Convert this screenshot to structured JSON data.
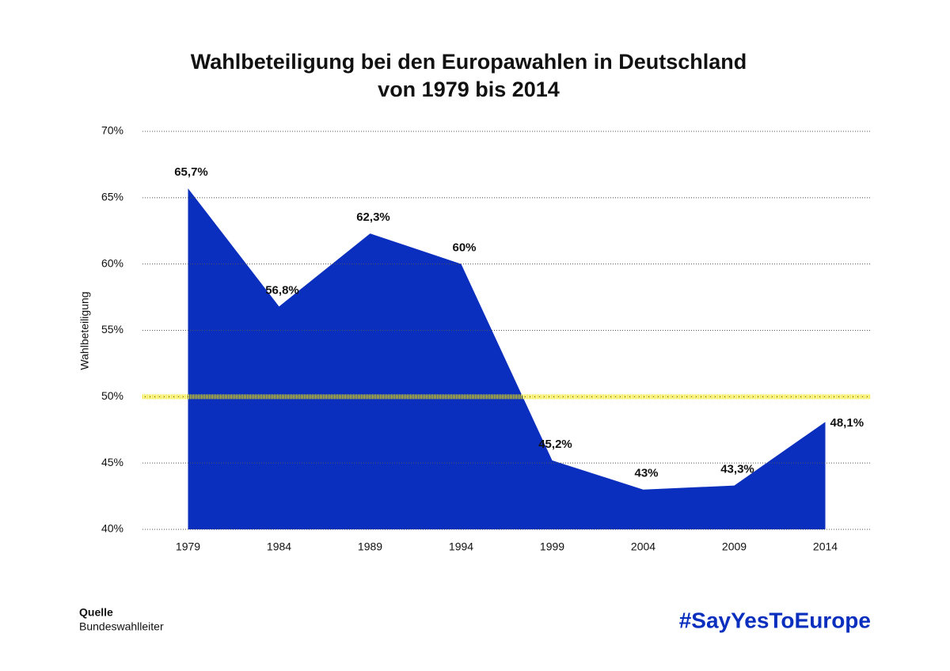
{
  "chart_data": {
    "type": "area",
    "title": "Wahlbeteiligung bei den Europawahlen in Deutschland",
    "subtitle": "von 1979 bis 2014",
    "y_label": "Wahlbeteiligung",
    "categories": [
      "1979",
      "1984",
      "1989",
      "1994",
      "1999",
      "2004",
      "2009",
      "2014"
    ],
    "values": [
      65.7,
      56.8,
      62.3,
      60,
      45.2,
      43,
      43.3,
      48.1
    ],
    "value_labels": [
      "65,7%",
      "56,8%",
      "62,3%",
      "60%",
      "45,2%",
      "43%",
      "43,3%",
      "48,1%"
    ],
    "color": "#0a2ebd",
    "ylim": [
      40,
      70
    ],
    "yticks": [
      {
        "value": 40,
        "label": "40%"
      },
      {
        "value": 45,
        "label": "45%"
      },
      {
        "value": 50,
        "label": "50%"
      },
      {
        "value": 55,
        "label": "55%"
      },
      {
        "value": 60,
        "label": "60%"
      },
      {
        "value": 65,
        "label": "65%"
      },
      {
        "value": 70,
        "label": "70%"
      }
    ],
    "grid": true,
    "reference_line": {
      "value": 50,
      "color": "#f2e600"
    },
    "source_heading": "Quelle",
    "source": "Bundeswahlleiter",
    "hashtag": "#SayYesToEurope"
  }
}
